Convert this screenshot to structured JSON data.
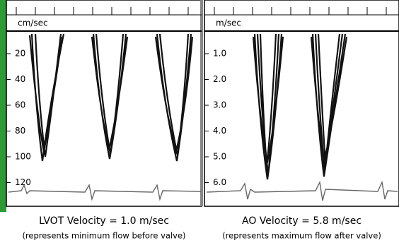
{
  "panels": [
    {
      "unit": "cm/sec",
      "scale": [
        "20",
        "40",
        "60",
        "80",
        "100",
        "120"
      ],
      "caption": "LVOT Velocity = 1.0 m/sec",
      "note": "(represents minimum flow before valve)"
    },
    {
      "unit": "m/sec",
      "scale": [
        "1.0",
        "2.0",
        "3.0",
        "4.0",
        "5.0",
        "6.0"
      ],
      "caption": "AO Velocity = 5.8 m/sec",
      "note": "(represents maximum flow after valve)"
    }
  ]
}
